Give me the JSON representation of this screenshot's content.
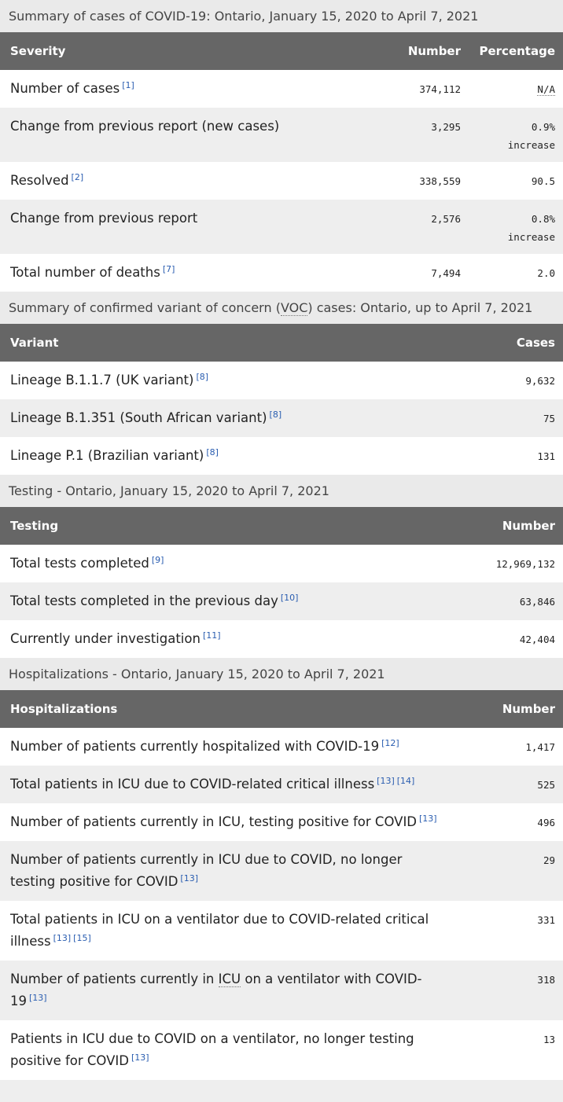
{
  "tables": [
    {
      "caption": [
        {
          "t": "Summary of cases of COVID-19: Ontario, January 15, 2020 to April 7, 2021"
        }
      ],
      "headers": [
        "Severity",
        "Number",
        "Percentage"
      ],
      "rows": [
        {
          "label": [
            {
              "t": "Number of cases"
            }
          ],
          "refs": [
            "[1]"
          ],
          "values": [
            "374,112",
            "N/A"
          ],
          "abbr_value": true
        },
        {
          "label": [
            {
              "t": "Change from previous report (new cases)"
            }
          ],
          "refs": [],
          "values": [
            "3,295",
            "0.9%"
          ],
          "note": "increase"
        },
        {
          "label": [
            {
              "t": "Resolved"
            }
          ],
          "refs": [
            "[2]"
          ],
          "values": [
            "338,559",
            "90.5"
          ]
        },
        {
          "label": [
            {
              "t": "Change from previous report"
            }
          ],
          "refs": [],
          "values": [
            "2,576",
            "0.8%"
          ],
          "note": "increase"
        },
        {
          "label": [
            {
              "t": "Total number of deaths"
            }
          ],
          "refs": [
            "[7]"
          ],
          "values": [
            "7,494",
            "2.0"
          ]
        }
      ]
    },
    {
      "caption": [
        {
          "t": "Summary of confirmed variant of concern ("
        },
        {
          "abbr": "VOC"
        },
        {
          "t": ") cases: Ontario, up to April 7, 2021"
        }
      ],
      "headers": [
        "Variant",
        "Cases"
      ],
      "rows": [
        {
          "label": [
            {
              "t": "Lineage B.1.1.7 (UK variant)"
            }
          ],
          "refs": [
            "[8]"
          ],
          "values": [
            "9,632"
          ]
        },
        {
          "label": [
            {
              "t": "Lineage B.1.351 (South African variant)"
            }
          ],
          "refs": [
            "[8]"
          ],
          "values": [
            "75"
          ]
        },
        {
          "label": [
            {
              "t": "Lineage P.1 (Brazilian variant)"
            }
          ],
          "refs": [
            "[8]"
          ],
          "values": [
            "131"
          ]
        }
      ]
    },
    {
      "caption": [
        {
          "t": "Testing - Ontario, January 15, 2020 to April 7, 2021"
        }
      ],
      "headers": [
        "Testing",
        "Number"
      ],
      "rows": [
        {
          "label": [
            {
              "t": "Total tests completed"
            }
          ],
          "refs": [
            "[9]"
          ],
          "values": [
            "12,969,132"
          ]
        },
        {
          "label": [
            {
              "t": "Total tests completed in the previous day"
            }
          ],
          "refs": [
            "[10]"
          ],
          "values": [
            "63,846"
          ]
        },
        {
          "label": [
            {
              "t": "Currently under investigation"
            }
          ],
          "refs": [
            "[11]"
          ],
          "values": [
            "42,404"
          ]
        }
      ]
    },
    {
      "caption": [
        {
          "t": "Hospitalizations - Ontario, January 15, 2020 to April 7, 2021"
        }
      ],
      "headers": [
        "Hospitalizations",
        "Number"
      ],
      "rows": [
        {
          "label": [
            {
              "t": "Number of patients currently hospitalized with COVID-19"
            }
          ],
          "refs": [
            "[12]"
          ],
          "values": [
            "1,417"
          ]
        },
        {
          "label": [
            {
              "t": "Total patients in ICU due to COVID-related critical illness"
            }
          ],
          "refs": [
            "[13]",
            "[14]"
          ],
          "values": [
            "525"
          ]
        },
        {
          "label": [
            {
              "t": "Number of patients currently in ICU, testing positive for COVID"
            }
          ],
          "refs": [
            "[13]"
          ],
          "values": [
            "496"
          ]
        },
        {
          "label": [
            {
              "t": "Number of patients currently in ICU due to COVID, no longer testing positive for COVID"
            }
          ],
          "refs": [
            "[13]"
          ],
          "values": [
            "29"
          ]
        },
        {
          "label": [
            {
              "t": "Total patients in ICU on a ventilator due to COVID-related critical illness"
            }
          ],
          "refs": [
            "[13]",
            "[15]"
          ],
          "values": [
            "331"
          ]
        },
        {
          "label": [
            {
              "t": "Number of patients currently in "
            },
            {
              "abbr": "ICU"
            },
            {
              "t": " on a ventilator with COVID-19"
            }
          ],
          "refs": [
            "[13]"
          ],
          "values": [
            "318"
          ]
        },
        {
          "label": [
            {
              "t": "Patients in ICU due to COVID on a ventilator, no longer testing positive for COVID"
            }
          ],
          "refs": [
            "[13]"
          ],
          "values": [
            "13"
          ]
        },
        {
          "label": [],
          "refs": [],
          "values": [
            ""
          ]
        }
      ]
    }
  ],
  "colors": {
    "header_bg": "#666666",
    "caption_bg": "#eaeaea",
    "row_alt": "#eeeeee",
    "ref_link": "#2a5db0"
  }
}
